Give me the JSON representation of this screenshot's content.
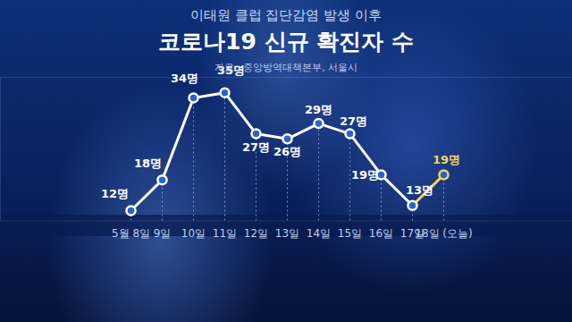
{
  "chart_data": {
    "type": "line",
    "subtitle": "이태원 클럽 집단감염 발생 이후",
    "title": "코로나19 신규 확진자 수",
    "source": "자료 : 중앙방역대책본부, 서울시",
    "categories": [
      "5월 8일",
      "9일",
      "10일",
      "11일",
      "12일",
      "13일",
      "14일",
      "15일",
      "16일",
      "17일",
      "18일 (오늘)"
    ],
    "values": [
      12,
      18,
      34,
      35,
      27,
      26,
      29,
      27,
      19,
      13,
      19
    ],
    "value_labels": [
      "12명",
      "18명",
      "34명",
      "35명",
      "27명",
      "26명",
      "29명",
      "27명",
      "19명",
      "13명",
      "19명"
    ],
    "colors": [
      "#ffffff",
      "#ffffff",
      "#ffffff",
      "#ffffff",
      "#ffffff",
      "#ffffff",
      "#ffffff",
      "#ffffff",
      "#ffffff",
      "#ffffff",
      "#f5d45e"
    ],
    "ylim": [
      10,
      38
    ],
    "yticks": [],
    "tick_labels": "x",
    "data_labels": true,
    "marker": "circle"
  }
}
